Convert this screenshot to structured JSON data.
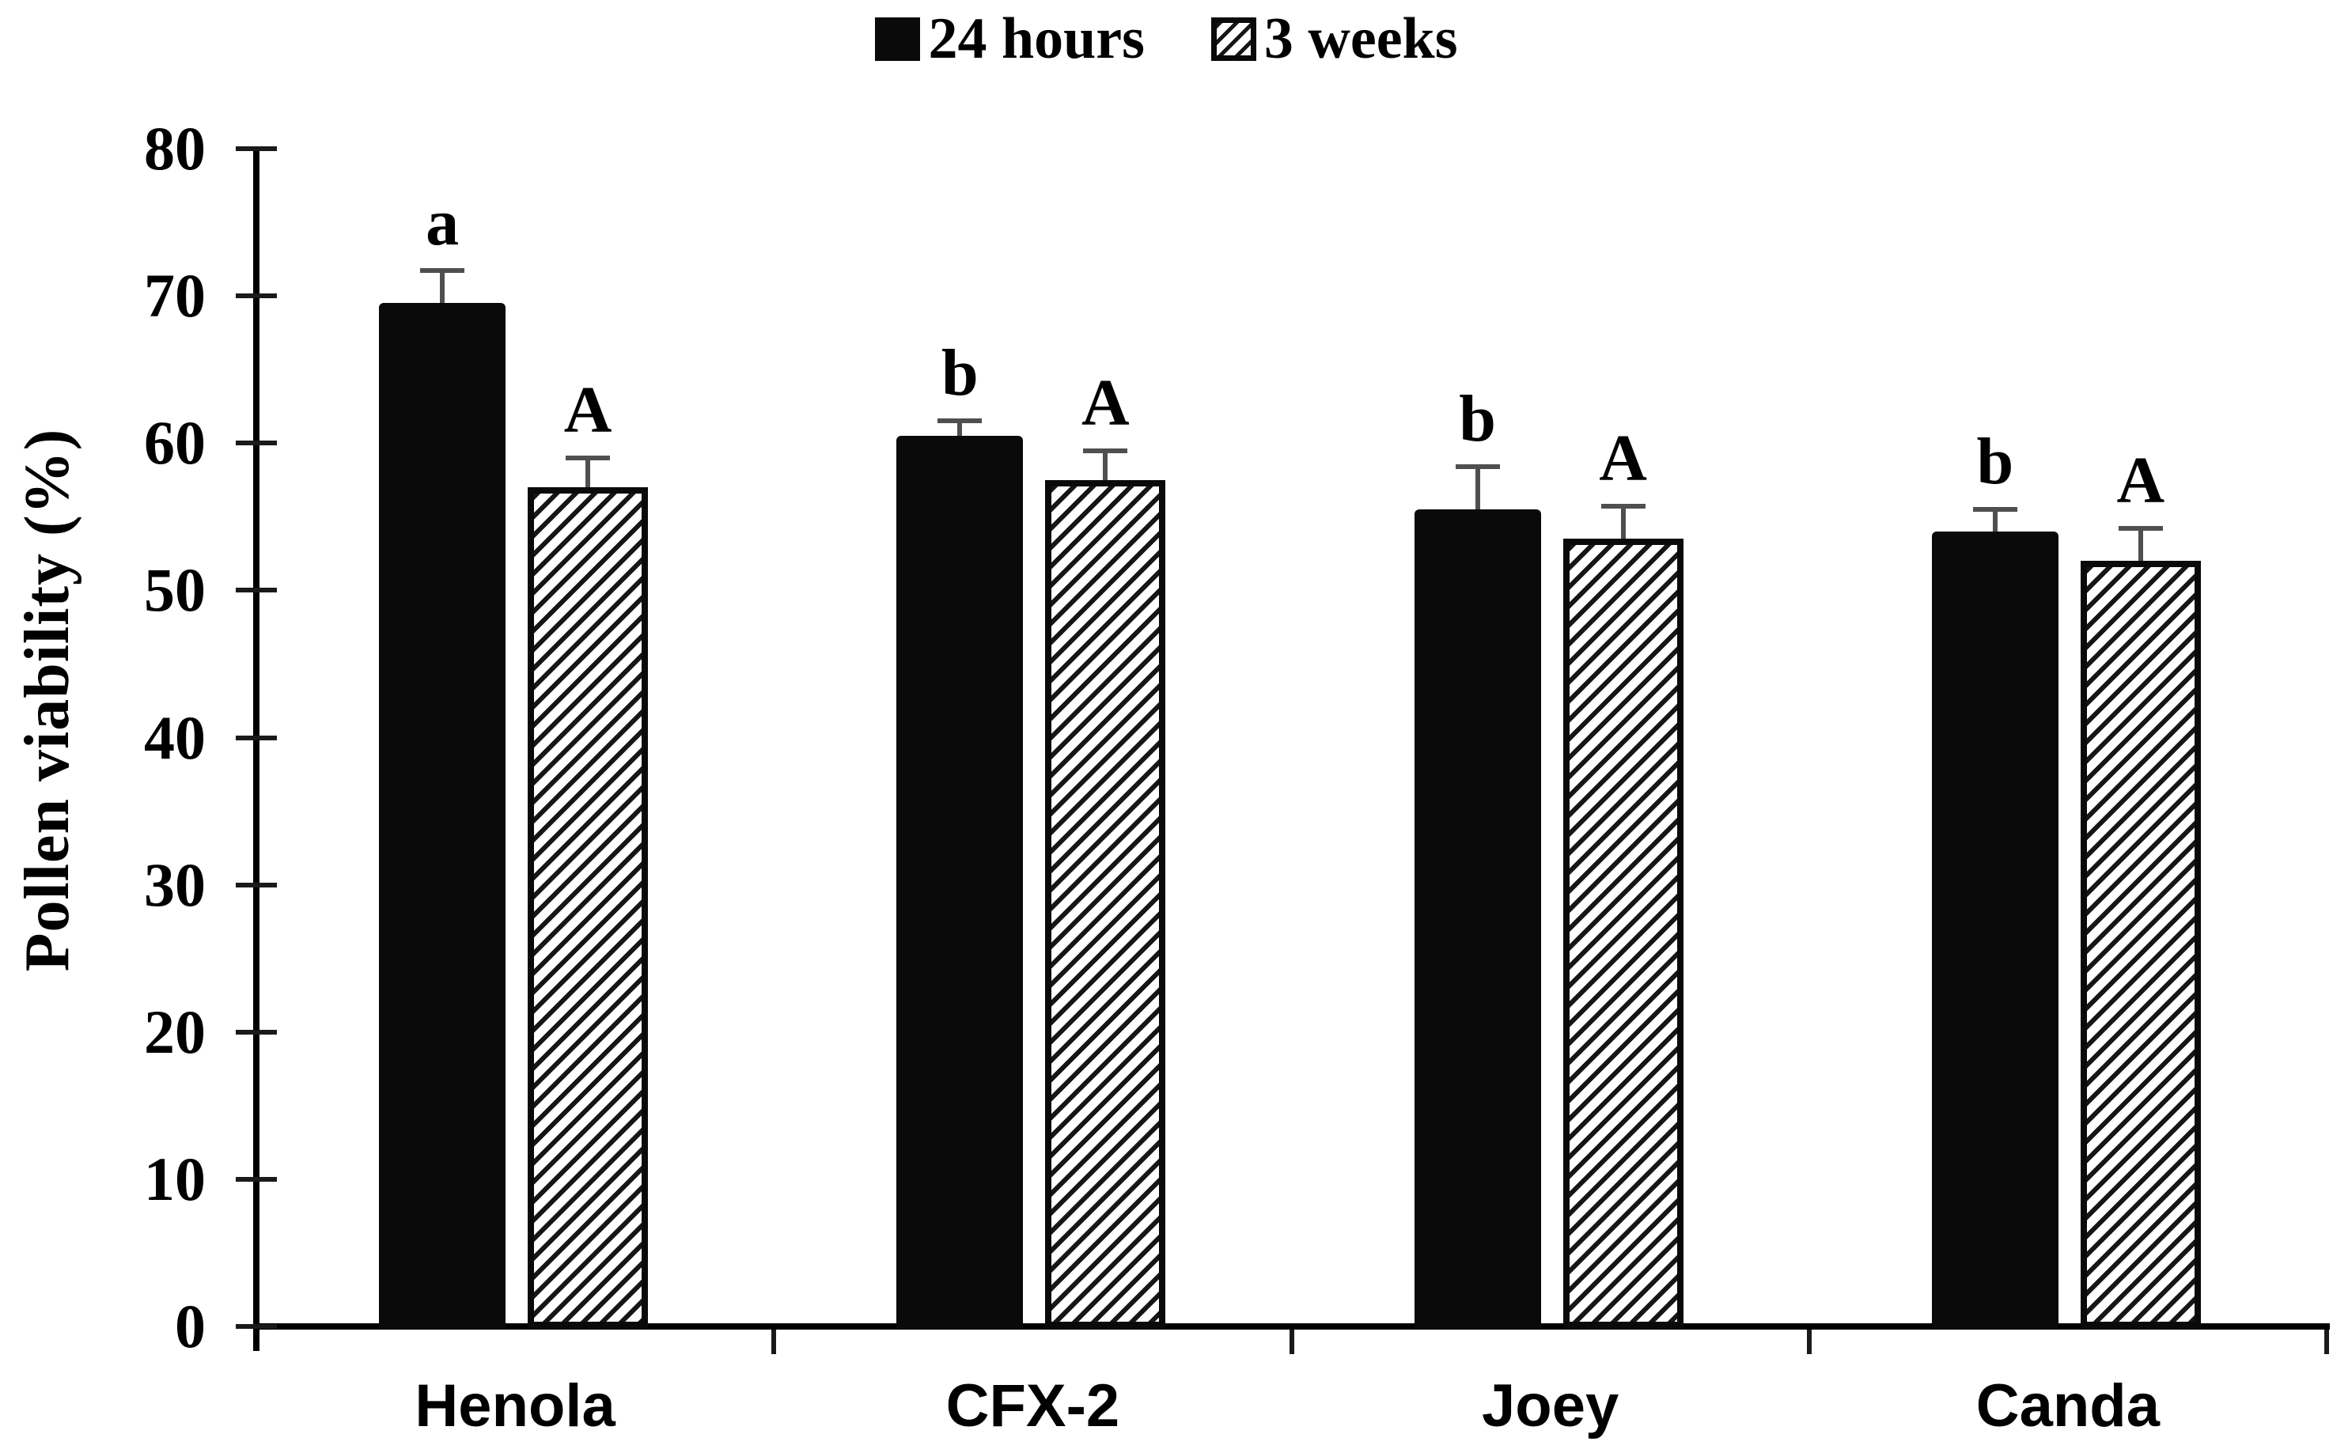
{
  "figure": {
    "background_color": "#ffffff",
    "bar_color": "#0a0a0a",
    "hatch_color": "#161616",
    "error_bar_color": "#4f4f4f",
    "text_color": "#000000"
  },
  "legend": {
    "items": [
      {
        "label": "24 hours",
        "swatch": "solid-black-square-icon"
      },
      {
        "label": "3 weeks",
        "swatch": "hatched-square-icon"
      }
    ]
  },
  "chart_data": {
    "type": "bar",
    "title": "",
    "categories": [
      "Henola",
      "CFX-2",
      "Joey",
      "Canda"
    ],
    "series": [
      {
        "name": "24 hours",
        "style": "solid",
        "values": [
          69.5,
          60.5,
          55.5,
          54
        ],
        "errors": [
          2.2,
          1.0,
          2.9,
          1.5
        ],
        "letters": [
          "a",
          "b",
          "b",
          "b"
        ]
      },
      {
        "name": "3 weeks",
        "style": "hatched",
        "values": [
          57,
          57.5,
          53.5,
          52
        ],
        "errors": [
          2.0,
          2.0,
          2.2,
          2.2
        ],
        "letters": [
          "A",
          "A",
          "A",
          "A"
        ]
      }
    ],
    "xlabel": "",
    "ylabel": "Pollen viability (%)",
    "ylim": [
      0,
      80
    ],
    "yticks": [
      0,
      10,
      20,
      30,
      40,
      50,
      60,
      70,
      80
    ],
    "grid": false,
    "error_bars": true,
    "legend_position": "top-center"
  }
}
